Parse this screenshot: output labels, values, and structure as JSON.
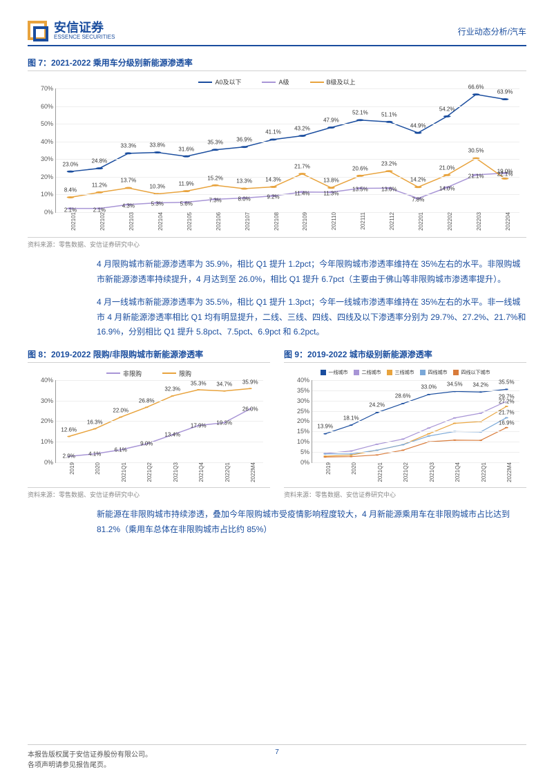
{
  "header": {
    "logo_cn": "安信证券",
    "logo_en": "ESSENCE SECURITIES",
    "right": "行业动态分析/汽车"
  },
  "fig7": {
    "title": "图 7：2021-2022 乘用车分级别新能源渗透率",
    "source": "资料来源：零售数据、安信证券研究中心",
    "legend": [
      "A0及以下",
      "A级",
      "B级及以上"
    ],
    "colors": [
      "#1a4d9e",
      "#a895d6",
      "#e8a33d"
    ],
    "categories": [
      "202101",
      "202102",
      "202103",
      "202104",
      "202105",
      "202106",
      "202107",
      "202108",
      "202109",
      "202110",
      "202111",
      "202112",
      "202201",
      "202202",
      "202203",
      "202204"
    ],
    "series_a0": [
      23.0,
      24.8,
      33.3,
      33.8,
      31.6,
      35.3,
      36.9,
      41.1,
      43.2,
      47.9,
      52.1,
      51.1,
      44.9,
      54.2,
      66.6,
      63.9
    ],
    "series_a": [
      2.1,
      2.1,
      4.3,
      5.3,
      5.6,
      7.3,
      8.0,
      9.2,
      11.4,
      11.3,
      13.5,
      13.6,
      7.8,
      14.0,
      21.1,
      22.1
    ],
    "series_b": [
      8.4,
      11.2,
      13.7,
      10.3,
      11.9,
      15.2,
      13.3,
      14.3,
      21.7,
      13.8,
      20.6,
      23.2,
      14.2,
      21.0,
      30.5,
      19.0
    ],
    "ylim": [
      0,
      70
    ],
    "ytick_step": 10,
    "label_fontsize": 8,
    "grid_color": "#eeeeee",
    "line_width": 1.5
  },
  "para1": "4 月限购城市新能源渗透率为 35.9%，相比 Q1 提升 1.2pct；今年限购城市渗透率维持在 35%左右的水平。非限购城市新能源渗透率持续提升，4 月达到至 26.0%，相比 Q1 提升 6.7pct（主要由于佛山等非限购城市渗透率提升）。",
  "para2": "4 月一线城市新能源渗透率为 35.5%，相比 Q1 提升 1.3pct；今年一线城市渗透率维持在 35%左右的水平。非一线城市 4 月新能源渗透率相比 Q1 均有明显提升，二线、三线、四线、四线及以下渗透率分别为 29.7%、27.2%、21.7%和 16.9%，分别相比 Q1 提升 5.8pct、7.5pct、6.9pct 和 6.2pct。",
  "fig8": {
    "title": "图 8：2019-2022 限购/非限购城市新能源渗透率",
    "source": "资料来源：零售数据、安信证券研究中心",
    "legend": [
      "非限购",
      "限购"
    ],
    "colors": [
      "#a895d6",
      "#e8a33d"
    ],
    "categories": [
      "2019",
      "2020",
      "2021Q1",
      "2021Q2",
      "2021Q3",
      "2021Q4",
      "2022Q1",
      "2022M4"
    ],
    "series_nl": [
      2.9,
      4.1,
      6.1,
      9.0,
      13.4,
      17.9,
      19.3,
      26.0
    ],
    "series_l": [
      12.6,
      16.3,
      22.0,
      26.8,
      32.3,
      35.3,
      34.7,
      35.9
    ],
    "ylim": [
      0,
      40
    ],
    "ytick_step": 10,
    "grid_color": "#eeeeee",
    "line_width": 1.5
  },
  "fig9": {
    "title": "图 9：2019-2022 城市级别新能源渗透率",
    "source": "资料来源：零售数据、安信证券研究中心",
    "legend": [
      "一线城市",
      "二线城市",
      "三线城市",
      "四线城市",
      "四线以下城市"
    ],
    "colors": [
      "#1a4d9e",
      "#a895d6",
      "#e8a33d",
      "#7aa8d8",
      "#d97b3a"
    ],
    "categories": [
      "2019",
      "2020",
      "2021Q1",
      "2021Q2",
      "2021Q3",
      "2021Q4",
      "2022Q1",
      "2022M4"
    ],
    "series": [
      [
        13.9,
        18.1,
        24.2,
        28.6,
        33.0,
        34.5,
        34.2,
        35.5
      ],
      [
        4.3,
        5.5,
        8.8,
        11.3,
        16.7,
        21.6,
        23.9,
        29.7
      ],
      [
        3.0,
        3.5,
        5.9,
        8.6,
        13.9,
        19.0,
        19.8,
        27.2
      ],
      [
        4.1,
        4.1,
        5.9,
        8.6,
        12.8,
        15.0,
        14.8,
        21.7
      ],
      [
        2.6,
        2.8,
        3.6,
        5.9,
        10.0,
        10.8,
        10.7,
        16.9
      ]
    ],
    "ylim": [
      0,
      40
    ],
    "ytick_step": 5,
    "grid_color": "#eeeeee",
    "line_width": 1.2
  },
  "para3": "新能源在非限购城市持续渗透，叠加今年限购城市受疫情影响程度较大，4 月新能源乘用车在非限购城市占比达到 81.2%（乘用车总体在非限购城市占比约 85%）",
  "footer": {
    "line1": "本报告版权属于安信证券股份有限公司。",
    "line2": "各项声明请参见报告尾页。",
    "page": "7"
  }
}
